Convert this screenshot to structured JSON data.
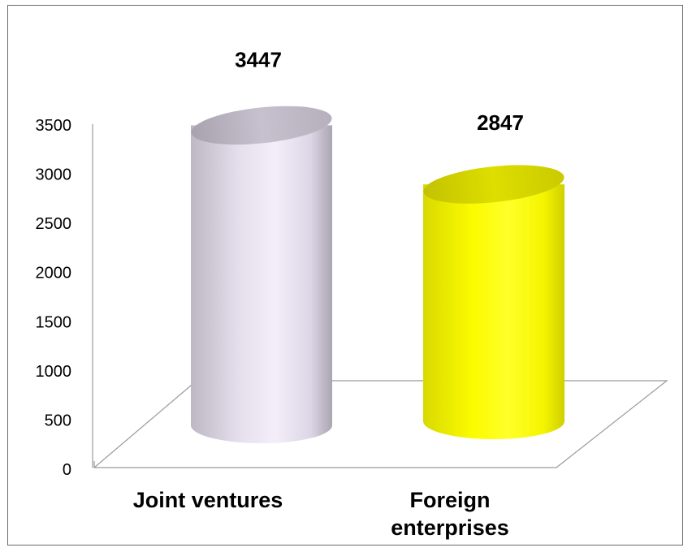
{
  "chart_data": {
    "type": "bar",
    "style": "3d-cylinder",
    "title": "",
    "xlabel": "",
    "ylabel": "",
    "categories": [
      [
        "Joint ventures"
      ],
      [
        "Foreign",
        "enterprises"
      ]
    ],
    "values": [
      3447,
      2847
    ],
    "data_labels": [
      "3447",
      "2847"
    ],
    "colors": [
      "#d9d2e6",
      "#ffff00"
    ],
    "ylim": [
      0,
      3500
    ],
    "yticks": [
      0,
      500,
      1000,
      1500,
      2000,
      2500,
      3000,
      3500
    ],
    "ytick_labels": [
      "0",
      "500",
      "1000",
      "1500",
      "2000",
      "2500",
      "3000",
      "3500"
    ],
    "grid": false,
    "legend": "none"
  }
}
